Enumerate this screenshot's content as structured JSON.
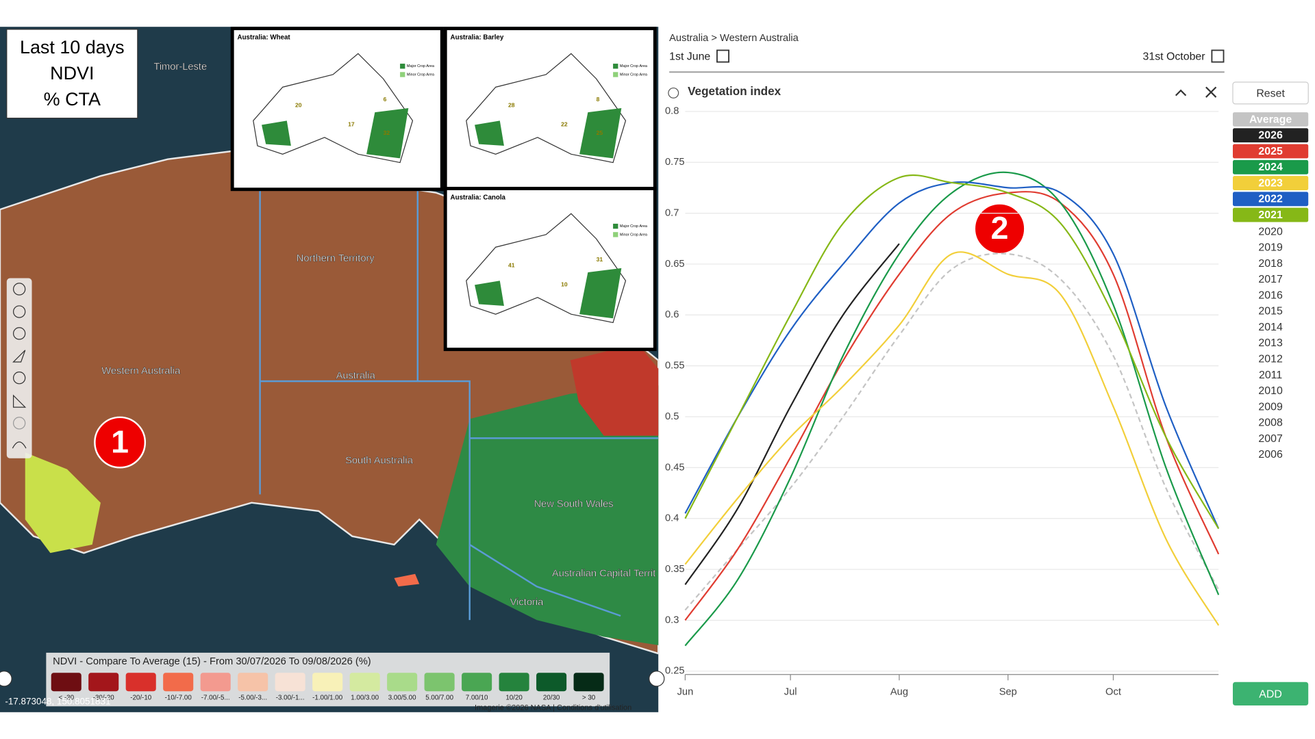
{
  "ui": {
    "breadcrumb": "Australia > Western Australia",
    "start_date": "1st June",
    "end_date": "31st October",
    "panel_title": "Vegetation index",
    "reset": "Reset",
    "add": "ADD",
    "other_years": [
      "2020",
      "2019",
      "2018",
      "2017",
      "2016",
      "2015",
      "2014",
      "2013",
      "2012",
      "2011",
      "2010",
      "2009",
      "2008",
      "2007",
      "2006"
    ]
  },
  "map": {
    "info_box": [
      "Last 10 days",
      "NDVI",
      "% CTA"
    ],
    "regions": [
      "Timor-Leste",
      "Northern Territory",
      "Western Australia",
      "Australia",
      "South Australia",
      "New South Wales",
      "Australian Capital Territ",
      "Victoria"
    ],
    "legend_title": "NDVI - Compare To Average (15) - From 30/07/2026 To 09/08/2026 (%)",
    "legend_labels": [
      "< -30",
      "-30/-20",
      "-20/-10",
      "-10/-7.00",
      "-7.00/-5...",
      "-5.00/-3...",
      "-3.00/-1...",
      "-1.00/1.00",
      "1.00/3.00",
      "3.00/5.00",
      "5.00/7.00",
      "7.00/10",
      "10/20",
      "20/30",
      "> 30"
    ],
    "legend_colors": [
      "#6e0e12",
      "#a3161b",
      "#d9302b",
      "#f26b4a",
      "#f39a8f",
      "#f6c3a8",
      "#f7e2d6",
      "#f8f1b8",
      "#d4eaa0",
      "#a9db8a",
      "#7cc46e",
      "#4aa653",
      "#25833d",
      "#0d5a2a",
      "#062b17"
    ],
    "coords": "-17.873048, 150.8051831",
    "attribution": "Imagerie ©2026 NASA | Conditions d'utilisation",
    "insets": [
      {
        "title": "Australia:  Wheat",
        "numbers": [
          "20",
          "17",
          "6",
          "32"
        ]
      },
      {
        "title": "Australia:  Barley",
        "numbers": [
          "28",
          "22",
          "8",
          "25"
        ]
      },
      {
        "title": "Australia:  Canola",
        "numbers": [
          "41",
          "10",
          "31"
        ]
      }
    ],
    "inset_legend": [
      "Major Crop Area",
      "Minor Crop Area"
    ],
    "markers": [
      "1",
      "2"
    ]
  },
  "chart_data": {
    "type": "line",
    "x": [
      0,
      15,
      30,
      45,
      61,
      76,
      92,
      107,
      122,
      137,
      152
    ],
    "xlim": [
      0,
      152
    ],
    "xticks": [
      {
        "value": 0,
        "label": "Jun"
      },
      {
        "value": 30,
        "label": "Jul"
      },
      {
        "value": 61,
        "label": "Aug"
      },
      {
        "value": 92,
        "label": "Sep"
      },
      {
        "value": 122,
        "label": "Oct"
      }
    ],
    "ylim": [
      0.25,
      0.8
    ],
    "yticks": [
      0.25,
      0.3,
      0.35,
      0.4,
      0.45,
      0.5,
      0.55,
      0.6,
      0.65,
      0.7,
      0.75,
      0.8
    ],
    "grid": true,
    "series": [
      {
        "name": "Average",
        "color": "#c4c4c4",
        "dashed": true,
        "values": [
          0.31,
          0.37,
          0.43,
          0.5,
          0.58,
          0.645,
          0.66,
          0.635,
          0.56,
          0.43,
          0.33
        ]
      },
      {
        "name": "2026",
        "color": "#222222",
        "values": [
          0.335,
          0.41,
          0.51,
          0.6,
          0.67,
          null,
          null,
          null,
          null,
          null,
          null
        ]
      },
      {
        "name": "2025",
        "color": "#e03c31",
        "values": [
          0.3,
          0.37,
          0.46,
          0.555,
          0.64,
          0.7,
          0.72,
          0.71,
          0.64,
          0.48,
          0.365
        ]
      },
      {
        "name": "2024",
        "color": "#1a9a4a",
        "values": [
          0.275,
          0.34,
          0.44,
          0.56,
          0.66,
          0.72,
          0.74,
          0.71,
          0.61,
          0.45,
          0.325
        ]
      },
      {
        "name": "2023",
        "color": "#f2cf3a",
        "values": [
          0.355,
          0.42,
          0.48,
          0.53,
          0.59,
          0.66,
          0.64,
          0.62,
          0.51,
          0.38,
          0.295
        ]
      },
      {
        "name": "2022",
        "color": "#1f5fc4",
        "values": [
          0.405,
          0.5,
          0.585,
          0.65,
          0.71,
          0.73,
          0.725,
          0.72,
          0.66,
          0.51,
          0.39
        ]
      },
      {
        "name": "2021",
        "color": "#86b817",
        "values": [
          0.4,
          0.5,
          0.6,
          0.69,
          0.735,
          0.73,
          0.72,
          0.69,
          0.6,
          0.48,
          0.39
        ]
      }
    ]
  }
}
